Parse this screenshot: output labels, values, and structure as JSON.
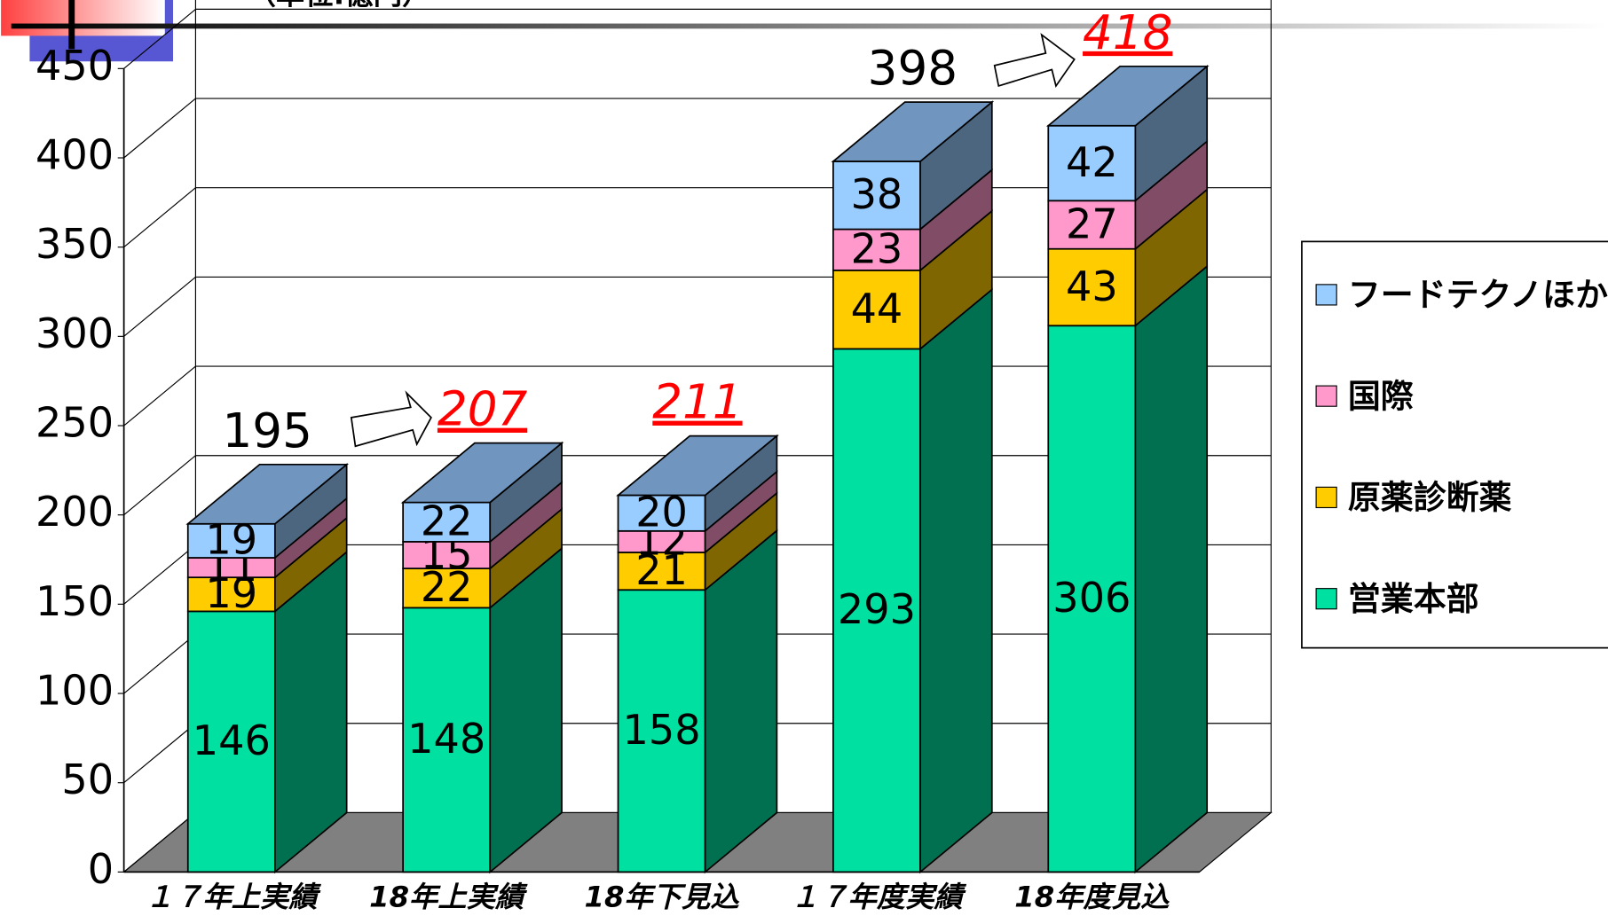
{
  "chart_data": {
    "type": "bar3d_stacked",
    "unit_label": "（単位:億円）",
    "categories": [
      "１７年上実績",
      "18年上実績",
      "18年下見込",
      "１７年度実績",
      "18年度見込"
    ],
    "series": [
      {
        "name": "営業本部",
        "color": "#00e0a0",
        "side_color": "#007050",
        "values": [
          146,
          148,
          158,
          293,
          306
        ]
      },
      {
        "name": "原薬診断薬",
        "color": "#ffcc00",
        "side_color": "#806600",
        "values": [
          19,
          22,
          21,
          44,
          43
        ]
      },
      {
        "name": "国際",
        "color": "#ff99cc",
        "side_color": "#804c66",
        "values": [
          11,
          15,
          12,
          23,
          27
        ]
      },
      {
        "name": "フードテクノほか",
        "color": "#99ccff",
        "side_color": "#4c6680",
        "top_color": "#7096c0",
        "values": [
          19,
          22,
          20,
          38,
          42
        ]
      }
    ],
    "totals": [
      195,
      207,
      211,
      398,
      418
    ],
    "total_colors": [
      "#000000",
      "#ff0000",
      "#ff0000",
      "#000000",
      "#ff0000"
    ],
    "ylim": [
      0,
      450
    ],
    "yticks": [
      0,
      50,
      100,
      150,
      200,
      250,
      300,
      350,
      400,
      450
    ],
    "grid": true,
    "legend": "right"
  }
}
